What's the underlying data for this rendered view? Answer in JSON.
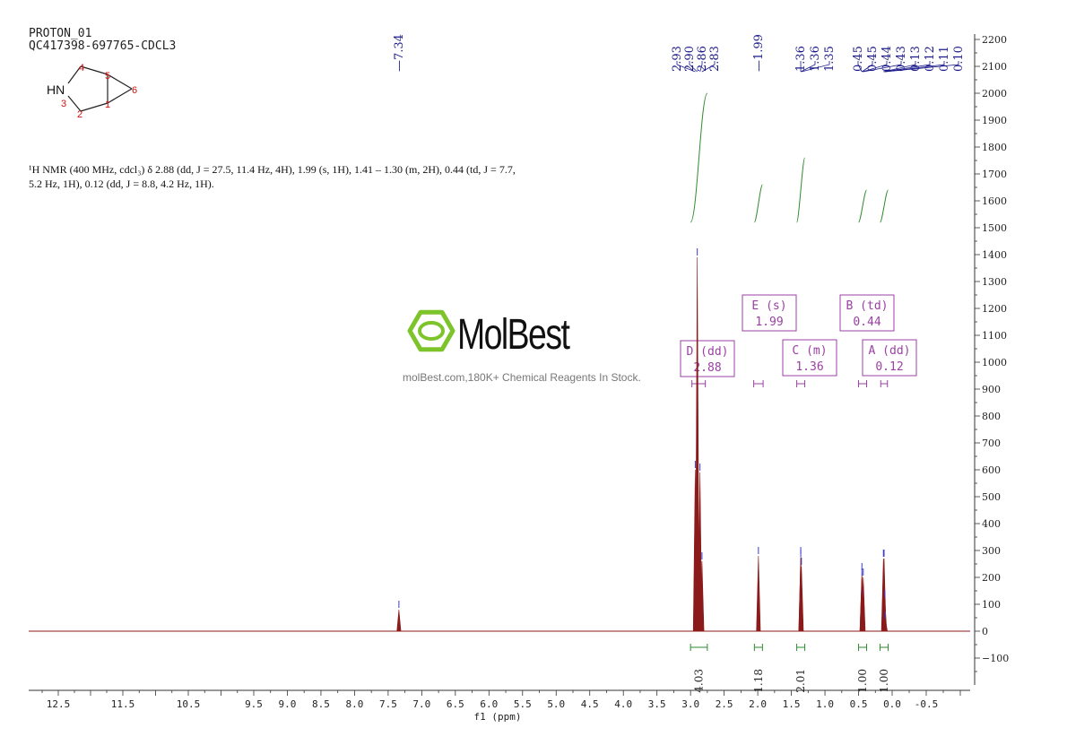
{
  "header": {
    "title": "PROTON_01",
    "sample": "QC417398-697765-CDCL3"
  },
  "description": {
    "prefix": "H NMR (400 MHz, cdcl",
    "text": "¹H NMR (400 MHz, cdcl₃) δ 2.88 (dd, J = 27.5, 11.4 Hz, 4H), 1.99 (s, 1H), 1.41 – 1.30 (m, 2H), 0.44 (td, J = 7.7, 5.2 Hz, 1H), 0.12 (dd, J = 8.8, 4.2 Hz, 1H)."
  },
  "structure": {
    "atoms": [
      "HN",
      "1",
      "2",
      "3",
      "4",
      "5",
      "6"
    ]
  },
  "watermark": {
    "brand": "MolBest",
    "tagline": "molBest.com,180K+ Chemical Reagents In Stock."
  },
  "colors": {
    "spectrum": "#8b1a1a",
    "integral": "#2e8b2e",
    "peak_label": "#1a1a8b",
    "multiplet_box": "#9b3fa4",
    "brand_green": "#7dc42b"
  },
  "chart_data": {
    "type": "line",
    "xlabel": "f1 (ppm)",
    "ylabel": "",
    "xlim": [
      12.8,
      -1.1
    ],
    "ylim": [
      -200,
      2200
    ],
    "x_ticks": [
      "12.5",
      "11.5",
      "10.5",
      "9.5",
      "9.0",
      "8.5",
      "8.0",
      "7.5",
      "7.0",
      "6.5",
      "6.0",
      "5.5",
      "5.0",
      "4.5",
      "4.0",
      "3.5",
      "3.0",
      "2.5",
      "2.0",
      "1.5",
      "1.0",
      "0.5",
      "0.0",
      "-0.5"
    ],
    "x_tick_values": [
      12.5,
      11.5,
      10.5,
      9.5,
      9.0,
      8.5,
      8.0,
      7.5,
      7.0,
      6.5,
      6.0,
      5.5,
      5.0,
      4.5,
      4.0,
      3.5,
      3.0,
      2.5,
      2.0,
      1.5,
      1.0,
      0.5,
      0.0,
      -0.5
    ],
    "y_ticks": [
      2200,
      2100,
      2000,
      1900,
      1800,
      1700,
      1600,
      1500,
      1400,
      1300,
      1200,
      1100,
      1000,
      900,
      800,
      700,
      600,
      500,
      400,
      300,
      200,
      100,
      0,
      -100
    ],
    "y_tick_labels": [
      "2200",
      "2100",
      "2000",
      "1900",
      "1800",
      "1700",
      "1600",
      "1500",
      "1400",
      "1300",
      "1200",
      "1100",
      "1000",
      "900",
      "800",
      "700",
      "600",
      "500",
      "400",
      "300",
      "200",
      "100",
      "0",
      "−100"
    ],
    "peaks": [
      {
        "ppm": 7.34,
        "height": 80
      },
      {
        "ppm": 2.93,
        "height": 600
      },
      {
        "ppm": 2.9,
        "height": 1390
      },
      {
        "ppm": 2.86,
        "height": 590
      },
      {
        "ppm": 2.83,
        "height": 260
      },
      {
        "ppm": 1.99,
        "height": 280
      },
      {
        "ppm": 1.36,
        "height": 280
      },
      {
        "ppm": 1.36,
        "height": 270
      },
      {
        "ppm": 1.35,
        "height": 240
      },
      {
        "ppm": 0.45,
        "height": 220
      },
      {
        "ppm": 0.45,
        "height": 200
      },
      {
        "ppm": 0.44,
        "height": 120
      },
      {
        "ppm": 0.43,
        "height": 200
      },
      {
        "ppm": 0.13,
        "height": 270
      },
      {
        "ppm": 0.12,
        "height": 270
      },
      {
        "ppm": 0.11,
        "height": 120
      },
      {
        "ppm": 0.1,
        "height": 40
      }
    ],
    "peak_labels": {
      "single": [
        "7.34",
        "1.99"
      ],
      "group1": [
        "2.93",
        "2.90",
        "2.86",
        "2.83"
      ],
      "group2": [
        "1.36",
        "1.36",
        "1.35"
      ],
      "group3": [
        "0.45",
        "0.45",
        "0.44",
        "0.43",
        "0.13",
        "0.12",
        "0.11",
        "0.10"
      ]
    },
    "integrals": [
      {
        "from": 3.0,
        "to": 2.75,
        "value": "4.03",
        "top": 2000,
        "base": 1520
      },
      {
        "from": 2.05,
        "to": 1.93,
        "value": "1.18",
        "top": 1660,
        "base": 1520
      },
      {
        "from": 1.42,
        "to": 1.3,
        "value": "2.01",
        "top": 1760,
        "base": 1520
      },
      {
        "from": 0.5,
        "to": 0.38,
        "value": "1.00",
        "top": 1640,
        "base": 1520
      },
      {
        "from": 0.18,
        "to": 0.06,
        "value": "1.00",
        "top": 1640,
        "base": 1520
      }
    ],
    "multiplets": [
      {
        "letter": "D",
        "type": "(dd)",
        "shift": "2.88",
        "from": 2.98,
        "to": 2.78
      },
      {
        "letter": "E",
        "type": "(s)",
        "shift": "1.99",
        "from": 2.06,
        "to": 1.92
      },
      {
        "letter": "C",
        "type": "(m)",
        "shift": "1.36",
        "from": 1.42,
        "to": 1.3
      },
      {
        "letter": "B",
        "type": "(td)",
        "shift": "0.44",
        "from": 0.5,
        "to": 0.38
      },
      {
        "letter": "A",
        "type": "(dd)",
        "shift": "0.12",
        "from": 0.17,
        "to": 0.07
      }
    ]
  }
}
